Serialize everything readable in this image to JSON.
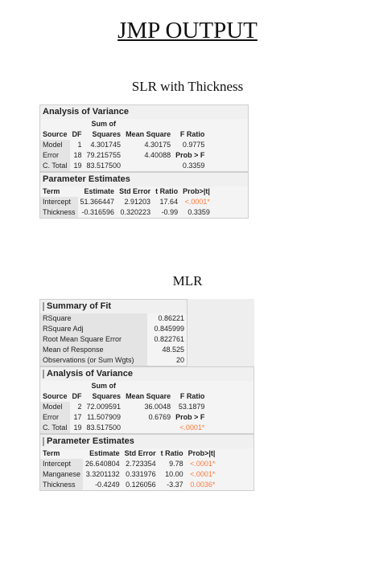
{
  "page": {
    "title": "JMP OUTPUT",
    "slr_heading": "SLR with Thickness",
    "mlr_heading": "MLR"
  },
  "slr": {
    "anova": {
      "header": "Analysis of Variance",
      "col_source": "Source",
      "col_df": "DF",
      "col_ss_top": "Sum of",
      "col_ss_bottom": "Squares",
      "col_ms": "Mean Square",
      "col_f": "F Ratio",
      "rows": [
        {
          "source": "Model",
          "df": "1",
          "ss": "4.301745",
          "ms": "4.30175",
          "f": "0.9775"
        },
        {
          "source": "Error",
          "df": "18",
          "ss": "79.215755",
          "ms": "4.40088",
          "f": "Prob > F"
        },
        {
          "source": "C. Total",
          "df": "19",
          "ss": "83.517500",
          "ms": "",
          "f": "0.3359"
        }
      ]
    },
    "params": {
      "header": "Parameter Estimates",
      "cols": [
        "Term",
        "Estimate",
        "Std Error",
        "t Ratio",
        "Prob>|t|"
      ],
      "rows": [
        {
          "term": "Intercept",
          "est": "51.366447",
          "se": "2.91203",
          "t": "17.64",
          "p": "<.0001*"
        },
        {
          "term": "Thickness",
          "est": "-0.316596",
          "se": "0.320223",
          "t": "-0.99",
          "p": "0.3359"
        }
      ]
    }
  },
  "mlr": {
    "fit": {
      "header": "Summary of Fit",
      "rows": [
        {
          "label": "RSquare",
          "value": "0.86221"
        },
        {
          "label": "RSquare Adj",
          "value": "0.845999"
        },
        {
          "label": "Root Mean Square Error",
          "value": "0.822761"
        },
        {
          "label": "Mean of Response",
          "value": "48.525"
        },
        {
          "label": "Observations (or Sum Wgts)",
          "value": "20"
        }
      ]
    },
    "anova": {
      "header": "Analysis of Variance",
      "col_source": "Source",
      "col_df": "DF",
      "col_ss_top": "Sum of",
      "col_ss_bottom": "Squares",
      "col_ms": "Mean Square",
      "col_f": "F Ratio",
      "rows": [
        {
          "source": "Model",
          "df": "2",
          "ss": "72.009591",
          "ms": "36.0048",
          "f": "53.1879"
        },
        {
          "source": "Error",
          "df": "17",
          "ss": "11.507909",
          "ms": "0.6769",
          "f": "Prob > F"
        },
        {
          "source": "C. Total",
          "df": "19",
          "ss": "83.517500",
          "ms": "",
          "f": "<.0001*"
        }
      ]
    },
    "params": {
      "header": "Parameter Estimates",
      "cols": [
        "Term",
        "Estimate",
        "Std Error",
        "t Ratio",
        "Prob>|t|"
      ],
      "rows": [
        {
          "term": "Intercept",
          "est": "26.640804",
          "se": "2.723354",
          "t": "9.78",
          "p": "<.0001*"
        },
        {
          "term": "Manganese",
          "est": "3.3201132",
          "se": "0.331976",
          "t": "10.00",
          "p": "<.0001*"
        },
        {
          "term": "Thickness",
          "est": "-0.4249",
          "se": "0.126056",
          "t": "-3.37",
          "p": "0.0036*"
        }
      ]
    }
  }
}
